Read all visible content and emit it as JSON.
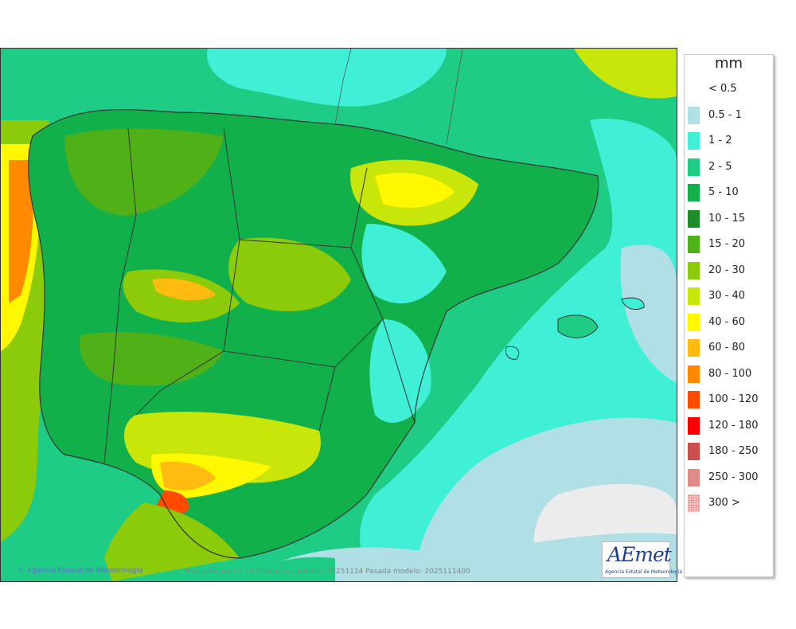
{
  "legend": {
    "unit": "mm",
    "items": [
      {
        "label": "< 0.5",
        "color": ""
      },
      {
        "label": "0.5 - 1",
        "color": "#b0dfe5"
      },
      {
        "label": "1 - 2",
        "color": "#3ff0d6"
      },
      {
        "label": "2 - 5",
        "color": "#1fcc86"
      },
      {
        "label": "5 - 10",
        "color": "#12b04a"
      },
      {
        "label": "10 - 15",
        "color": "#1e8c28"
      },
      {
        "label": "15 - 20",
        "color": "#4fb018"
      },
      {
        "label": "20 - 30",
        "color": "#8ccb0a"
      },
      {
        "label": "30 - 40",
        "color": "#c8e60a"
      },
      {
        "label": "40 - 60",
        "color": "#fff800"
      },
      {
        "label": "60 - 80",
        "color": "#ffbb10"
      },
      {
        "label": "80 - 100",
        "color": "#ff8a00"
      },
      {
        "label": "100 - 120",
        "color": "#ff4a00"
      },
      {
        "label": "120 - 180",
        "color": "#ff0000"
      },
      {
        "label": "180 - 250",
        "color": "#cc4d4d"
      },
      {
        "label": "250 - 300",
        "color": "#e08a8a"
      },
      {
        "label": "300 >",
        "color": "#f4c0c0"
      }
    ]
  },
  "footer": {
    "attribution": "© Agencia Estatal de Meteorología",
    "caption": "Precipitación en 24 h máxima. Validez: 20251114 Pasada modelo: 2025111400"
  },
  "logo": {
    "text": "AEmet",
    "subtitle": "Agencia Estatal de Meteorología"
  },
  "colors": {
    "sea_low": "#b0dfe5",
    "sea_mid": "#3ff0d6",
    "land_base": "#1fcc86",
    "border_line": "#333333"
  }
}
